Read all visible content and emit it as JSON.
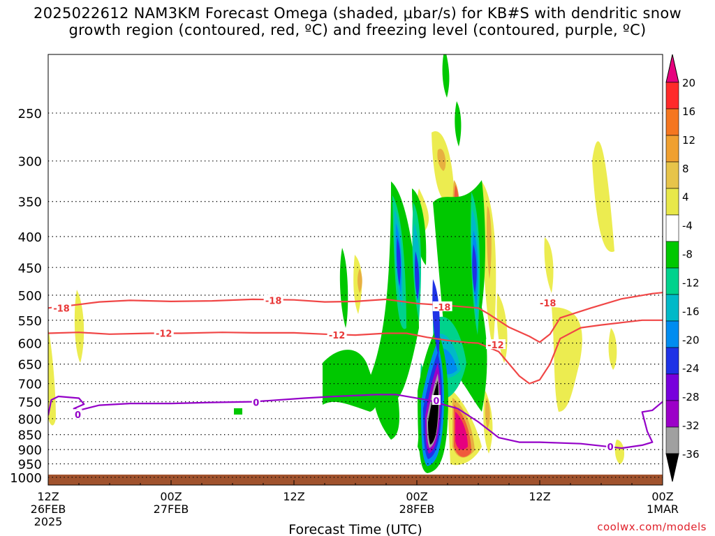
{
  "title": {
    "line1": "2025022612 NAM3KM Forecast Omega (shaded, μbar/s) for KB#S with dendritic snow",
    "line2": "growth region (contoured, red, ºC) and freezing level (contoured, purple, ºC)"
  },
  "credit": "coolwx.com/models",
  "chart_data": {
    "type": "heatmap",
    "xlabel": "Forecast Time (UTC)",
    "ylabel": "",
    "x_range_hours": [
      0,
      60
    ],
    "y_range_hpa": [
      1030,
      200
    ],
    "y_scale": "log-pressure",
    "grid": true,
    "pressure_levels": [
      250,
      300,
      350,
      400,
      450,
      500,
      550,
      600,
      650,
      700,
      750,
      800,
      850,
      900,
      950,
      1000
    ],
    "x_ticks": [
      {
        "hour": 0,
        "lines": [
          "12Z",
          "26FEB",
          "2025"
        ]
      },
      {
        "hour": 12,
        "lines": [
          "00Z",
          "27FEB"
        ]
      },
      {
        "hour": 24,
        "lines": [
          "12Z"
        ]
      },
      {
        "hour": 36,
        "lines": [
          "00Z",
          "28FEB"
        ]
      },
      {
        "hour": 48,
        "lines": [
          "12Z"
        ]
      },
      {
        "hour": 60,
        "lines": [
          "00Z",
          "1MAR"
        ]
      }
    ],
    "colorbar": {
      "labels": [
        "20",
        "16",
        "12",
        "8",
        "4",
        "-4",
        "-8",
        "-12",
        "-16",
        "-20",
        "-24",
        "-28",
        "-32",
        "-36"
      ],
      "colors": [
        "#e6007e",
        "#ff2a2a",
        "#f5761f",
        "#f0a030",
        "#e7c44a",
        "#e8e84a",
        "#ffffff",
        "#00c800",
        "#00d28c",
        "#00b9c8",
        "#008cf0",
        "#1e32e6",
        "#7800dc",
        "#9c00c8",
        "#a0a0a0",
        "#000000"
      ]
    },
    "series": [
      {
        "name": "-18",
        "color": "#f04646",
        "points": [
          [
            0,
            525
          ],
          [
            3,
            518
          ],
          [
            5,
            513
          ],
          [
            8,
            510
          ],
          [
            12,
            512
          ],
          [
            16,
            511
          ],
          [
            20,
            508
          ],
          [
            24,
            509
          ],
          [
            27,
            513
          ],
          [
            30,
            512
          ],
          [
            33,
            508
          ],
          [
            36,
            516
          ],
          [
            39,
            520
          ],
          [
            42,
            525
          ],
          [
            43,
            537
          ],
          [
            45,
            565
          ],
          [
            47,
            585
          ],
          [
            48,
            598
          ],
          [
            49,
            580
          ],
          [
            50,
            545
          ],
          [
            53,
            525
          ],
          [
            56,
            507
          ],
          [
            59,
            497
          ],
          [
            60,
            495
          ]
        ]
      },
      {
        "name": "-12",
        "color": "#f04646",
        "points": [
          [
            0,
            578
          ],
          [
            3,
            576
          ],
          [
            6,
            580
          ],
          [
            10,
            578
          ],
          [
            13,
            578
          ],
          [
            17,
            576
          ],
          [
            20,
            577
          ],
          [
            24,
            577
          ],
          [
            27,
            580
          ],
          [
            30,
            582
          ],
          [
            33,
            578
          ],
          [
            35,
            578
          ],
          [
            37,
            587
          ],
          [
            39,
            594
          ],
          [
            41,
            599
          ],
          [
            42,
            600
          ],
          [
            44,
            620
          ],
          [
            46,
            680
          ],
          [
            47,
            700
          ],
          [
            48,
            690
          ],
          [
            49,
            650
          ],
          [
            50,
            590
          ],
          [
            52,
            566
          ],
          [
            54,
            560
          ],
          [
            56,
            555
          ],
          [
            58,
            550
          ],
          [
            60,
            550
          ]
        ]
      },
      {
        "name": "0",
        "color": "#9400c8",
        "points": [
          [
            0,
            790
          ],
          [
            0.3,
            745
          ],
          [
            1,
            735
          ],
          [
            3,
            740
          ],
          [
            3.5,
            757
          ],
          [
            2.5,
            770
          ],
          [
            3,
            775
          ],
          [
            5,
            760
          ],
          [
            8,
            755
          ],
          [
            12,
            755
          ],
          [
            16,
            752
          ],
          [
            20,
            750
          ],
          [
            25,
            740
          ],
          [
            28,
            735
          ],
          [
            32,
            730
          ],
          [
            34,
            730
          ],
          [
            37,
            745
          ],
          [
            40,
            770
          ],
          [
            42,
            810
          ],
          [
            44,
            860
          ],
          [
            46,
            875
          ],
          [
            48,
            875
          ],
          [
            52,
            880
          ],
          [
            56,
            895
          ],
          [
            58,
            885
          ],
          [
            59,
            875
          ],
          [
            58.5,
            840
          ],
          [
            58,
            780
          ],
          [
            59,
            775
          ],
          [
            60,
            750
          ]
        ]
      }
    ],
    "contour_labels": [
      {
        "text": "-18",
        "x": 1.3,
        "y": 525
      },
      {
        "text": "-18",
        "x": 22,
        "y": 510
      },
      {
        "text": "-18",
        "x": 38.5,
        "y": 523
      },
      {
        "text": "-18",
        "x": 48.8,
        "y": 515
      },
      {
        "text": "-12",
        "x": 11.3,
        "y": 578
      },
      {
        "text": "-12",
        "x": 28.2,
        "y": 582
      },
      {
        "text": "-12",
        "x": 43.7,
        "y": 604
      },
      {
        "text": "0",
        "x": 2.9,
        "y": 788
      },
      {
        "text": "0",
        "x": 20.3,
        "y": 752
      },
      {
        "text": "0",
        "x": 37.9,
        "y": 747
      },
      {
        "text": "0",
        "x": 54.9,
        "y": 890
      }
    ]
  }
}
